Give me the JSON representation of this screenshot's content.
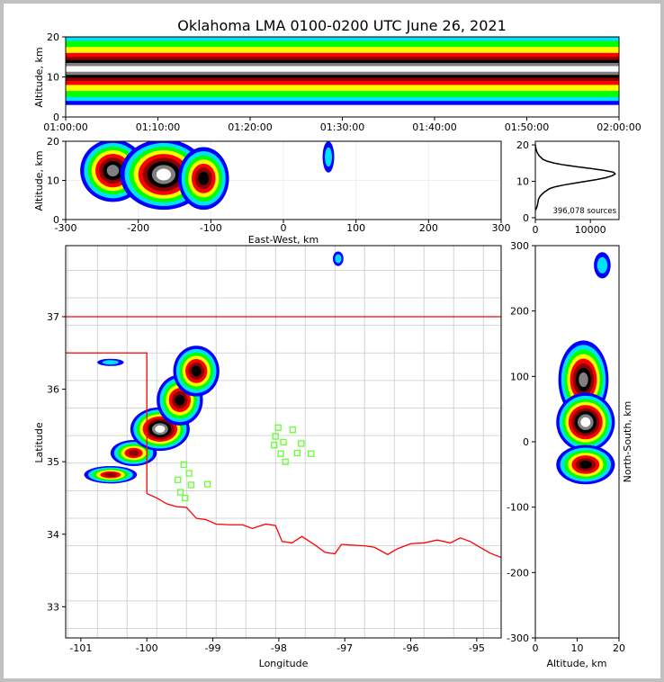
{
  "title": "Oklahoma LMA 0100-0200 UTC June 26, 2021",
  "colors": {
    "density_levels": [
      "#0000ff",
      "#00e0ff",
      "#00ff00",
      "#ffff00",
      "#ff0000",
      "#8b0000",
      "#000000",
      "#808080",
      "#ffffff"
    ],
    "state_border": "#ff0000",
    "county_border": "#c8c8c8",
    "station": "#66ff33"
  },
  "chart_data": [
    {
      "id": "time_height",
      "type": "heatmap",
      "xlabel": "",
      "ylabel": "Altitude, km",
      "xlim_minutes": [
        0,
        60
      ],
      "ylim": [
        0,
        20
      ],
      "x_ticks": [
        {
          "value": 0,
          "label": "01:00:00"
        },
        {
          "value": 10,
          "label": "01:10:00"
        },
        {
          "value": 20,
          "label": "01:20:00"
        },
        {
          "value": 30,
          "label": "01:30:00"
        },
        {
          "value": 40,
          "label": "01:40:00"
        },
        {
          "value": 50,
          "label": "01:50:00"
        },
        {
          "value": 60,
          "label": "02:00:00"
        }
      ],
      "y_ticks": [
        0,
        10,
        20
      ],
      "band_center_km": 12,
      "band_halfwidths_km": [
        9,
        8,
        7,
        5.5,
        4,
        3,
        2.2,
        1.5,
        0.7
      ]
    },
    {
      "id": "ew_height",
      "type": "heatmap",
      "xlabel": "East-West, km",
      "ylabel": "Altitude, km",
      "xlim": [
        -300,
        300
      ],
      "ylim": [
        0,
        20
      ],
      "x_ticks": [
        -300,
        -200,
        -100,
        0,
        100,
        200,
        300
      ],
      "y_ticks": [
        0,
        10,
        20
      ],
      "cells": [
        {
          "x": -235,
          "y": 12.5,
          "sx": 45,
          "sy": 8,
          "peak": 8
        },
        {
          "x": -165,
          "y": 11.5,
          "sx": 60,
          "sy": 9,
          "peak": 9
        },
        {
          "x": -110,
          "y": 10.5,
          "sx": 35,
          "sy": 8,
          "peak": 7
        },
        {
          "x": 62,
          "y": 16,
          "sx": 8,
          "sy": 4,
          "peak": 2
        }
      ]
    },
    {
      "id": "height_histogram",
      "type": "line",
      "xlabel": "",
      "ylabel": "",
      "xlim": [
        0,
        15200
      ],
      "ylim": [
        -0.5,
        21
      ],
      "x_ticks": [
        0,
        10000
      ],
      "y_ticks": [
        0,
        10,
        20
      ],
      "annotation": "396,078 sources",
      "altitude_km": [
        2,
        3,
        4,
        5,
        6,
        7,
        8,
        8.5,
        9,
        9.5,
        10,
        10.5,
        11,
        11.5,
        12,
        12.5,
        13,
        13.5,
        14,
        14.5,
        15,
        15.5,
        16,
        17,
        18,
        19,
        20
      ],
      "counts": [
        0,
        300,
        450,
        550,
        900,
        1600,
        2600,
        3600,
        5200,
        7200,
        9200,
        11200,
        12800,
        13900,
        14500,
        14200,
        12500,
        10200,
        7600,
        5200,
        3400,
        2200,
        1400,
        700,
        300,
        100,
        0
      ]
    },
    {
      "id": "plan_view",
      "type": "heatmap",
      "xlabel": "Longitude",
      "ylabel": "Latitude",
      "xlim": [
        -101.23,
        -94.63
      ],
      "ylim": [
        32.57,
        37.98
      ],
      "x_ticks": [
        -101,
        -100,
        -99,
        -98,
        -97,
        -96,
        -95
      ],
      "y_ticks": [
        33,
        34,
        35,
        36,
        37
      ],
      "cells": [
        {
          "x": -100.55,
          "y": 34.82,
          "sx": 0.4,
          "sy": 0.12,
          "peak": 6
        },
        {
          "x": -100.2,
          "y": 35.12,
          "sx": 0.35,
          "sy": 0.18,
          "peak": 6
        },
        {
          "x": -99.8,
          "y": 35.45,
          "sx": 0.45,
          "sy": 0.3,
          "peak": 9
        },
        {
          "x": -99.5,
          "y": 35.85,
          "sx": 0.35,
          "sy": 0.35,
          "peak": 7
        },
        {
          "x": -99.25,
          "y": 36.25,
          "sx": 0.35,
          "sy": 0.35,
          "peak": 7
        },
        {
          "x": -100.55,
          "y": 36.37,
          "sx": 0.2,
          "sy": 0.05,
          "peak": 2
        },
        {
          "x": -97.1,
          "y": 37.8,
          "sx": 0.08,
          "sy": 0.1,
          "peak": 2
        }
      ],
      "stations": [
        [
          -98.01,
          35.47
        ],
        [
          -97.79,
          35.44
        ],
        [
          -98.05,
          35.35
        ],
        [
          -97.93,
          35.27
        ],
        [
          -98.07,
          35.23
        ],
        [
          -97.66,
          35.25
        ],
        [
          -97.97,
          35.11
        ],
        [
          -97.72,
          35.12
        ],
        [
          -97.51,
          35.11
        ],
        [
          -97.9,
          35.0
        ],
        [
          -99.44,
          34.96
        ],
        [
          -99.36,
          34.84
        ],
        [
          -99.53,
          34.75
        ],
        [
          -99.33,
          34.68
        ],
        [
          -99.08,
          34.69
        ],
        [
          -99.49,
          34.58
        ],
        [
          -99.42,
          34.5
        ]
      ]
    },
    {
      "id": "ns_height",
      "type": "heatmap",
      "xlabel": "Altitude, km",
      "ylabel": "North-South, km",
      "xlim": [
        0,
        20
      ],
      "ylim": [
        -300,
        300
      ],
      "x_ticks": [
        0,
        10,
        20
      ],
      "y_ticks": [
        -300,
        -200,
        -100,
        0,
        100,
        200,
        300
      ],
      "cells": [
        {
          "x": 11.5,
          "y": 95,
          "sx": 6,
          "sy": 60,
          "peak": 8
        },
        {
          "x": 12,
          "y": 30,
          "sx": 7,
          "sy": 45,
          "peak": 9
        },
        {
          "x": 12,
          "y": -35,
          "sx": 7,
          "sy": 30,
          "peak": 7
        },
        {
          "x": 16,
          "y": 270,
          "sx": 2,
          "sy": 20,
          "peak": 2
        }
      ]
    }
  ]
}
